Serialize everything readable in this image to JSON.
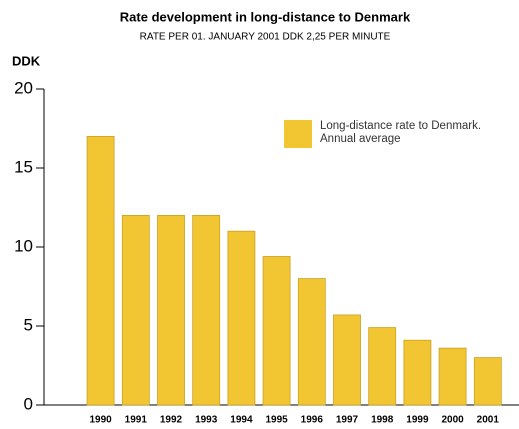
{
  "chart_data": {
    "type": "bar",
    "title": "Rate development in long-distance to Denmark",
    "subtitle": "RATE PER 01. JANUARY 2001 DDK 2,25 PER MINUTE",
    "ylabel": "DDK",
    "categories": [
      "1990",
      "1991",
      "1992",
      "1993",
      "1994",
      "1995",
      "1996",
      "1997",
      "1998",
      "1999",
      "2000",
      "2001"
    ],
    "series": [
      {
        "name": "Long-distance rate to Denmark. Annual average",
        "color": "#f2c632",
        "values": [
          17,
          12,
          12,
          12,
          11,
          9.4,
          8,
          5.7,
          4.9,
          4.1,
          3.6,
          3.0
        ]
      }
    ],
    "ylim": [
      0,
      20
    ],
    "yticks": [
      0,
      5,
      10,
      15,
      20
    ],
    "grid": false,
    "legend": "upper right"
  }
}
